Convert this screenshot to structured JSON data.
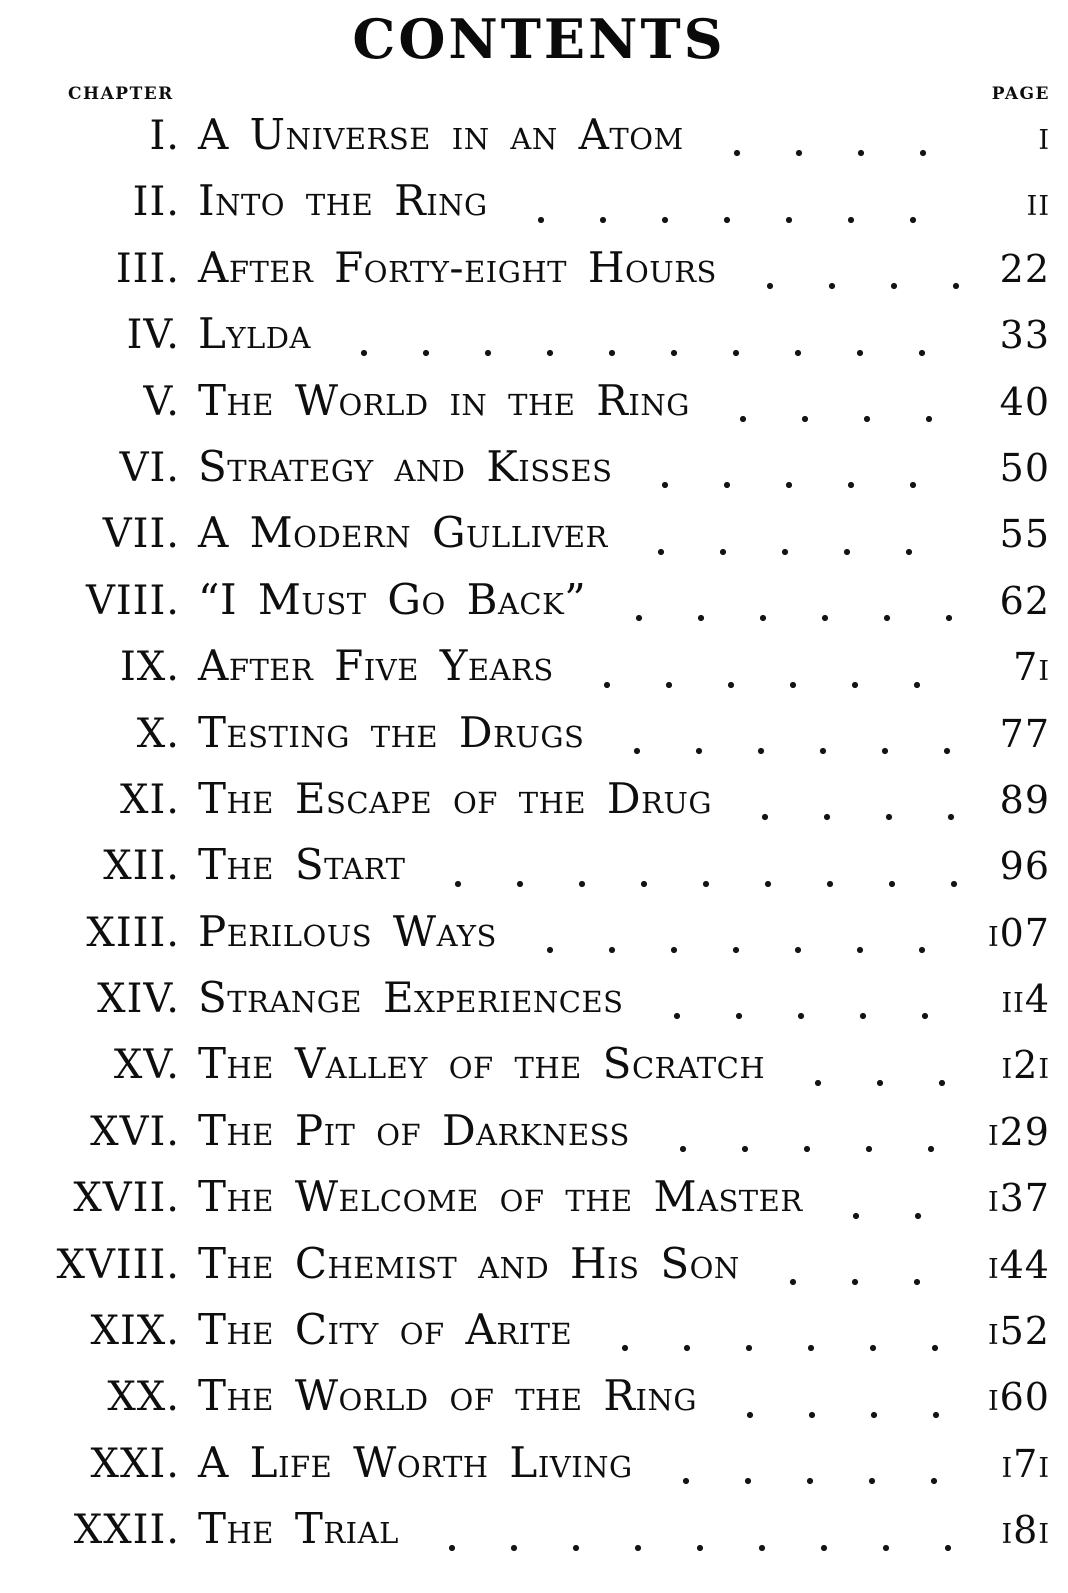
{
  "colors": {
    "ink": "#0e0e0e",
    "paper": "#ffffff"
  },
  "header": {
    "title": "CONTENTS",
    "chapter_column_label": "CHAPTER",
    "page_column_label": "PAGE"
  },
  "toc": {
    "entries": [
      {
        "numeral": "I.",
        "title": "A Universe in an Atom",
        "page": 1,
        "page_display": "i"
      },
      {
        "numeral": "II.",
        "title": "Into the Ring",
        "page": 11,
        "page_display": "ii"
      },
      {
        "numeral": "III.",
        "title": "After Forty-eight Hours",
        "page": 22,
        "page_display": "22"
      },
      {
        "numeral": "IV.",
        "title": "Lylda",
        "page": 33,
        "page_display": "33"
      },
      {
        "numeral": "V.",
        "title": "The World in the Ring",
        "page": 40,
        "page_display": "40"
      },
      {
        "numeral": "VI.",
        "title": "Strategy and Kisses",
        "page": 50,
        "page_display": "50"
      },
      {
        "numeral": "VII.",
        "title": "A Modern Gulliver",
        "page": 55,
        "page_display": "55"
      },
      {
        "numeral": "VIII.",
        "title": "“I Must Go Back”",
        "page": 62,
        "page_display": "62"
      },
      {
        "numeral": "IX.",
        "title": "After Five Years",
        "page": 71,
        "page_display": "7i"
      },
      {
        "numeral": "X.",
        "title": "Testing the Drugs",
        "page": 77,
        "page_display": "77"
      },
      {
        "numeral": "XI.",
        "title": "The Escape of the Drug",
        "page": 89,
        "page_display": "89"
      },
      {
        "numeral": "XII.",
        "title": "The Start",
        "page": 96,
        "page_display": "96"
      },
      {
        "numeral": "XIII.",
        "title": "Perilous Ways",
        "page": 107,
        "page_display": "i07"
      },
      {
        "numeral": "XIV.",
        "title": "Strange Experiences",
        "page": 114,
        "page_display": "ii4"
      },
      {
        "numeral": "XV.",
        "title": "The Valley of the Scratch",
        "page": 121,
        "page_display": "i2i"
      },
      {
        "numeral": "XVI.",
        "title": "The Pit of Darkness",
        "page": 129,
        "page_display": "i29"
      },
      {
        "numeral": "XVII.",
        "title": "The Welcome of the Master",
        "page": 137,
        "page_display": "i37"
      },
      {
        "numeral": "XVIII.",
        "title": "The Chemist and His Son",
        "page": 144,
        "page_display": "i44"
      },
      {
        "numeral": "XIX.",
        "title": "The City of Arite",
        "page": 152,
        "page_display": "i52"
      },
      {
        "numeral": "XX.",
        "title": "The World of the Ring",
        "page": 160,
        "page_display": "i60"
      },
      {
        "numeral": "XXI.",
        "title": "A Life Worth Living",
        "page": 171,
        "page_display": "i7i"
      },
      {
        "numeral": "XXII.",
        "title": "The Trial",
        "page": 181,
        "page_display": "i8i"
      }
    ]
  }
}
